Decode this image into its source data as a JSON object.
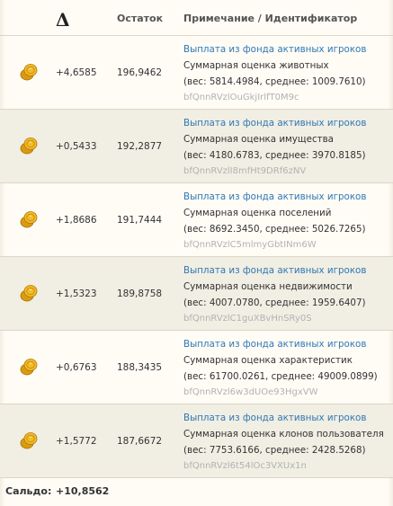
{
  "header": {
    "delta_symbol": "Δ",
    "balance_col": "Остаток",
    "note_col": "Примечание / Идентификатор"
  },
  "rows": [
    {
      "delta": "+4,6585",
      "balance": "196,9462",
      "link": "Выплата из фонда активных игроков",
      "desc": "Суммарная оценка животных",
      "weights": "(вес: 5814.4984, среднее: 1009.7610)",
      "id": "bfQnnRVzlOuGkjIrlfT0M9c",
      "icon": "gold-coins-icon"
    },
    {
      "delta": "+0,5433",
      "balance": "192,2877",
      "link": "Выплата из фонда активных игроков",
      "desc": "Суммарная оценка имущества",
      "weights": "(вес: 4180.6783, среднее: 3970.8185)",
      "id": "bfQnnRVzlI8mfHt9DRf6zNV",
      "icon": "gold-coins-icon"
    },
    {
      "delta": "+1,8686",
      "balance": "191,7444",
      "link": "Выплата из фонда активных игроков",
      "desc": "Суммарная оценка поселений",
      "weights": "(вес: 8692.3450, среднее: 5026.7265)",
      "id": "bfQnnRVzlC5mlmyGbtINm6W",
      "icon": "gold-coins-icon"
    },
    {
      "delta": "+1,5323",
      "balance": "189,8758",
      "link": "Выплата из фонда активных игроков",
      "desc": "Суммарная оценка недвижимости",
      "weights": "(вес: 4007.0780, среднее: 1959.6407)",
      "id": "bfQnnRVzlC1guXBvHnSRy0S",
      "icon": "gold-coins-icon"
    },
    {
      "delta": "+0,6763",
      "balance": "188,3435",
      "link": "Выплата из фонда активных игроков",
      "desc": "Суммарная оценка характеристик",
      "weights": "(вес: 61700.0261, среднее: 49009.0899)",
      "id": "bfQnnRVzl6w3dUOe93HgxVW",
      "icon": "gold-coins-icon"
    },
    {
      "delta": "+1,5772",
      "balance": "187,6672",
      "link": "Выплата из фонда активных игроков",
      "desc": "Суммарная оценка клонов пользователя",
      "weights": "(вес: 7753.6166, среднее: 2428.5268)",
      "id": "bfQnnRVzl6t54lOc3VXUx1n",
      "icon": "gold-coins-icon"
    }
  ],
  "footer": {
    "label": "Сальдо:",
    "value": "+10,8562"
  },
  "colors": {
    "link": "#2f78b5",
    "id": "#b2b2b2",
    "alt_row": "#f1eee3",
    "coin": "#e6a817"
  }
}
